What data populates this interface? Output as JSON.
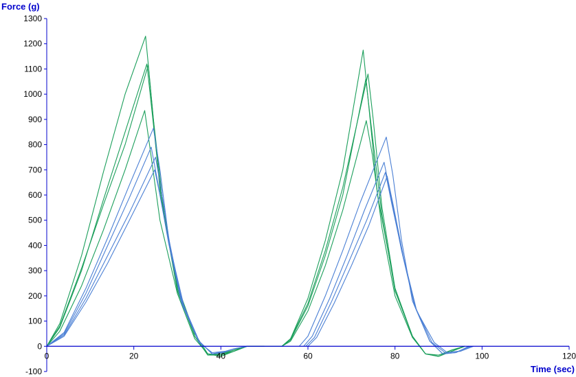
{
  "chart_data": {
    "type": "line",
    "xlabel": "Time (sec)",
    "ylabel": "Force (g)",
    "xlim": [
      0,
      120
    ],
    "ylim": [
      -100,
      1300
    ],
    "x_ticks": [
      0,
      20,
      40,
      60,
      80,
      100,
      120
    ],
    "y_ticks": [
      -100,
      0,
      100,
      200,
      300,
      400,
      500,
      600,
      700,
      800,
      900,
      1000,
      1100,
      1200,
      1300
    ],
    "grid": false,
    "legend": "none",
    "colors": {
      "axis": "#0000cc",
      "axis_title": "#0000cc",
      "green": "#1a9e5a",
      "blue": "#4a7fd4"
    },
    "series": [
      {
        "color": "green",
        "x": [
          0,
          3,
          8,
          13,
          18,
          22.7,
          23.7,
          26,
          30,
          34,
          37,
          40,
          43,
          46,
          50
        ],
        "y": [
          0,
          90,
          360,
          690,
          1000,
          1230,
          1050,
          620,
          230,
          40,
          -35,
          -30,
          -15,
          0,
          0
        ]
      },
      {
        "color": "green",
        "x": [
          0,
          3,
          8,
          13,
          18,
          23,
          24,
          26.5,
          30,
          34,
          37,
          40,
          43,
          46,
          50
        ],
        "y": [
          0,
          75,
          300,
          580,
          850,
          1120,
          960,
          560,
          220,
          40,
          -35,
          -35,
          -20,
          0,
          0
        ]
      },
      {
        "color": "green",
        "x": [
          0,
          3,
          8,
          13,
          18,
          23.3,
          24.5,
          27,
          30,
          34,
          37,
          40,
          43,
          46,
          50
        ],
        "y": [
          0,
          80,
          310,
          560,
          800,
          1115,
          900,
          520,
          240,
          50,
          -30,
          -40,
          -20,
          0,
          0
        ]
      },
      {
        "color": "green",
        "x": [
          0,
          3,
          8,
          13,
          18,
          22.5,
          23.6,
          26,
          30,
          34,
          37,
          40,
          43,
          46,
          50
        ],
        "y": [
          0,
          60,
          240,
          460,
          700,
          935,
          800,
          500,
          210,
          30,
          -30,
          -35,
          -15,
          0,
          0
        ]
      },
      {
        "color": "blue",
        "x": [
          0,
          4,
          9,
          14,
          19,
          24.5,
          26,
          28,
          31,
          35,
          38,
          40.5,
          43,
          46
        ],
        "y": [
          0,
          55,
          230,
          430,
          640,
          865,
          700,
          430,
          180,
          20,
          -30,
          -25,
          -10,
          0
        ]
      },
      {
        "color": "blue",
        "x": [
          0,
          4,
          9,
          14,
          19,
          24,
          25.5,
          28,
          31,
          35,
          38,
          40.5,
          43,
          46
        ],
        "y": [
          0,
          50,
          210,
          400,
          590,
          790,
          650,
          410,
          170,
          20,
          -30,
          -25,
          -10,
          0
        ]
      },
      {
        "color": "blue",
        "x": [
          0,
          4,
          9,
          14,
          19,
          25,
          26.3,
          28.5,
          31.5,
          35,
          38,
          41,
          43,
          46
        ],
        "y": [
          0,
          45,
          190,
          360,
          530,
          750,
          620,
          380,
          160,
          20,
          -30,
          -20,
          -10,
          0
        ]
      },
      {
        "color": "blue",
        "x": [
          0,
          4,
          9,
          14,
          19,
          24.8,
          26,
          28.5,
          31.5,
          35,
          38,
          41,
          43,
          46
        ],
        "y": [
          0,
          40,
          175,
          330,
          500,
          700,
          600,
          370,
          150,
          15,
          -25,
          -20,
          -10,
          0
        ]
      },
      {
        "color": "green",
        "x": [
          50,
          54,
          56,
          60,
          64,
          68,
          72.7,
          73.7,
          76,
          80,
          84,
          87,
          90,
          93,
          96
        ],
        "y": [
          0,
          0,
          30,
          190,
          420,
          700,
          1175,
          1000,
          600,
          230,
          40,
          -30,
          -40,
          -15,
          0
        ]
      },
      {
        "color": "green",
        "x": [
          54,
          56,
          60,
          64,
          68,
          73.8,
          75,
          77,
          80,
          84,
          87,
          90,
          93,
          96
        ],
        "y": [
          0,
          30,
          170,
          380,
          630,
          1080,
          900,
          550,
          230,
          40,
          -30,
          -40,
          -20,
          0
        ]
      },
      {
        "color": "green",
        "x": [
          54,
          56,
          60,
          64,
          68,
          73.3,
          74.5,
          77,
          80,
          84,
          87,
          90,
          93,
          96
        ],
        "y": [
          0,
          25,
          160,
          360,
          600,
          1060,
          880,
          520,
          220,
          40,
          -30,
          -40,
          -20,
          0
        ]
      },
      {
        "color": "green",
        "x": [
          54,
          56,
          60,
          64,
          68,
          73.4,
          74.8,
          77,
          80,
          84,
          87,
          90,
          93,
          96
        ],
        "y": [
          0,
          20,
          140,
          320,
          540,
          895,
          760,
          470,
          200,
          35,
          -30,
          -35,
          -15,
          0
        ]
      },
      {
        "color": "blue",
        "x": [
          58,
          60,
          64,
          68,
          72,
          78,
          79.5,
          81.5,
          84,
          88,
          91,
          94,
          97
        ],
        "y": [
          0,
          40,
          200,
          380,
          570,
          830,
          680,
          420,
          180,
          20,
          -30,
          -25,
          0
        ]
      },
      {
        "color": "blue",
        "x": [
          59,
          61,
          65,
          69,
          73,
          77.5,
          79,
          81.5,
          84.5,
          88,
          91,
          94,
          97
        ],
        "y": [
          0,
          40,
          190,
          360,
          540,
          730,
          600,
          380,
          160,
          20,
          -30,
          -25,
          0
        ]
      },
      {
        "color": "blue",
        "x": [
          60,
          62,
          66,
          70,
          74,
          78.2,
          79.6,
          82,
          85,
          89,
          92,
          95,
          98
        ],
        "y": [
          0,
          35,
          170,
          320,
          480,
          675,
          560,
          350,
          140,
          15,
          -25,
          -20,
          0
        ]
      },
      {
        "color": "blue",
        "x": [
          59.5,
          61.5,
          65.5,
          69.5,
          73.5,
          77.8,
          79.2,
          81.8,
          84.8,
          88.5,
          91.5,
          94.5,
          97.5
        ],
        "y": [
          0,
          35,
          180,
          340,
          500,
          690,
          570,
          360,
          150,
          15,
          -25,
          -20,
          0
        ]
      }
    ]
  }
}
